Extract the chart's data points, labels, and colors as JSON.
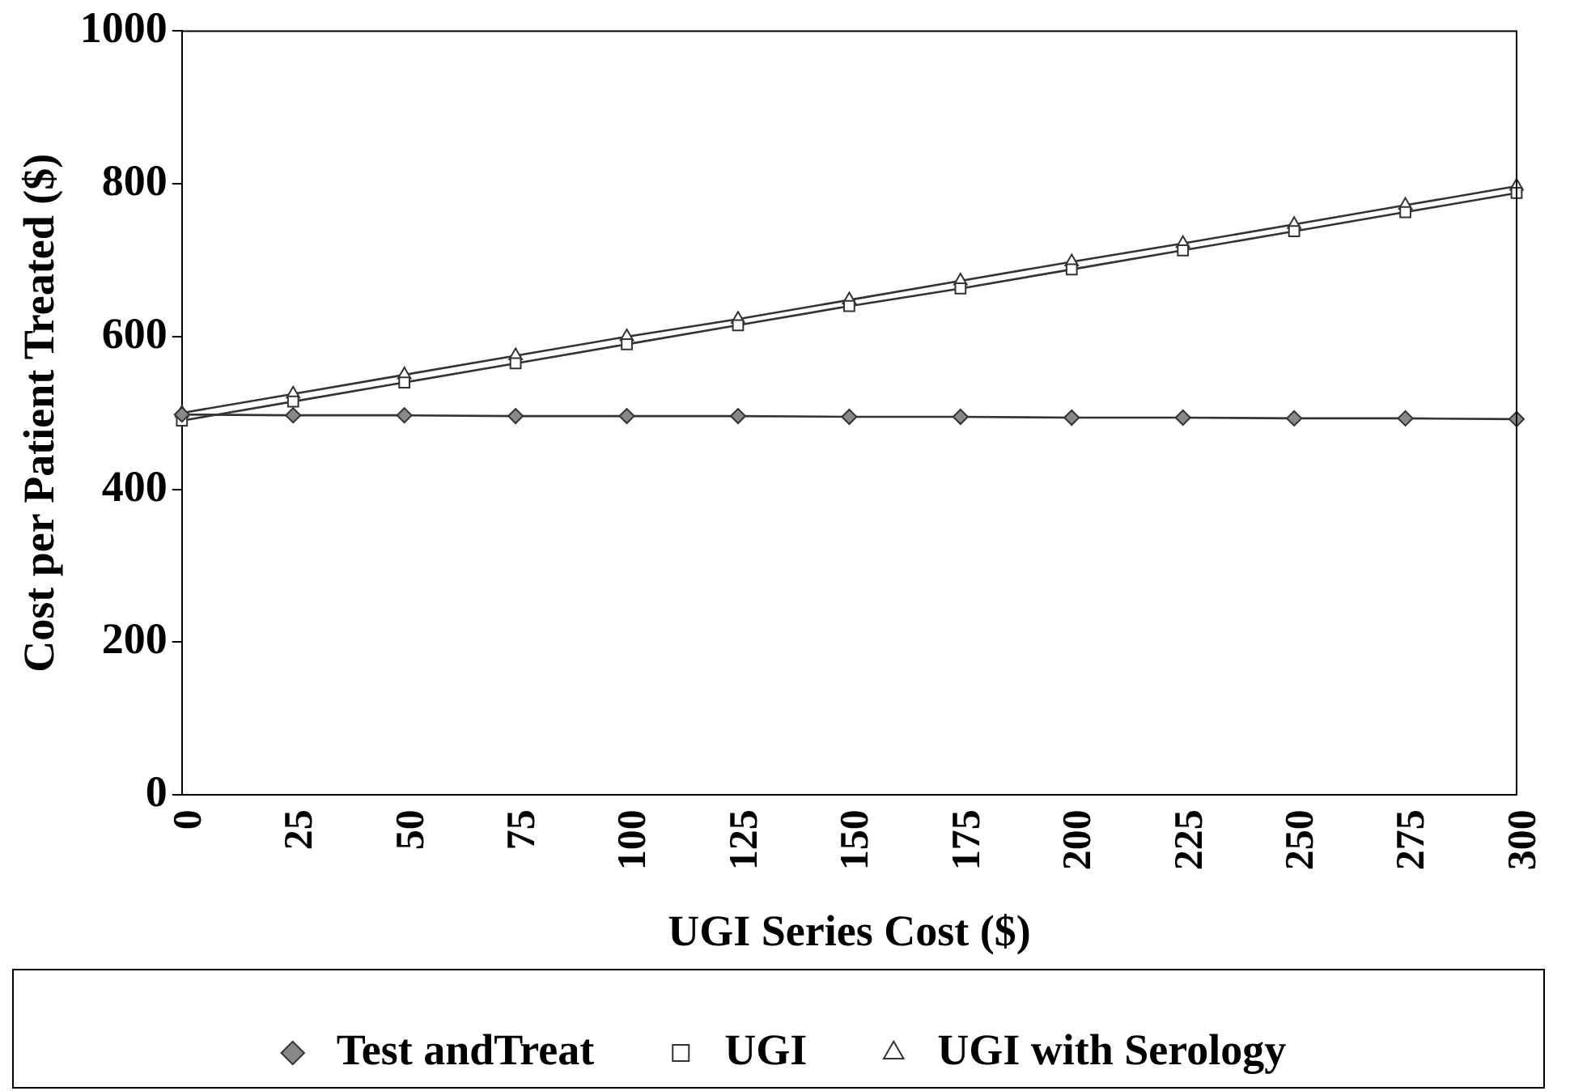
{
  "chart_data": {
    "type": "line",
    "xlabel": "UGI Series Cost ($)",
    "ylabel": "Cost per Patient Treated ($)",
    "x": [
      0,
      25,
      50,
      75,
      100,
      125,
      150,
      175,
      200,
      225,
      250,
      275,
      300
    ],
    "xlim": [
      0,
      300
    ],
    "xticks": [
      0,
      25,
      50,
      75,
      100,
      125,
      150,
      175,
      200,
      225,
      250,
      275,
      300
    ],
    "ylim": [
      0,
      1000
    ],
    "yticks": [
      0,
      200,
      400,
      600,
      800,
      1000
    ],
    "grid": false,
    "legend": "bottom",
    "line_style": "solid",
    "series": [
      {
        "name": "Test andTreat",
        "color": "#333333",
        "marker": "diamond",
        "values": [
          498,
          497,
          497,
          496,
          496,
          496,
          495,
          495,
          494,
          494,
          493,
          493,
          492
        ]
      },
      {
        "name": "UGI",
        "color": "#333333",
        "marker": "square",
        "values": [
          490,
          515,
          540,
          565,
          590,
          615,
          640,
          663,
          688,
          713,
          738,
          763,
          788
        ]
      },
      {
        "name": "UGI with Serology",
        "color": "#333333",
        "marker": "triangle",
        "values": [
          500,
          525,
          550,
          575,
          600,
          623,
          648,
          673,
          698,
          722,
          747,
          772,
          797
        ]
      }
    ]
  }
}
